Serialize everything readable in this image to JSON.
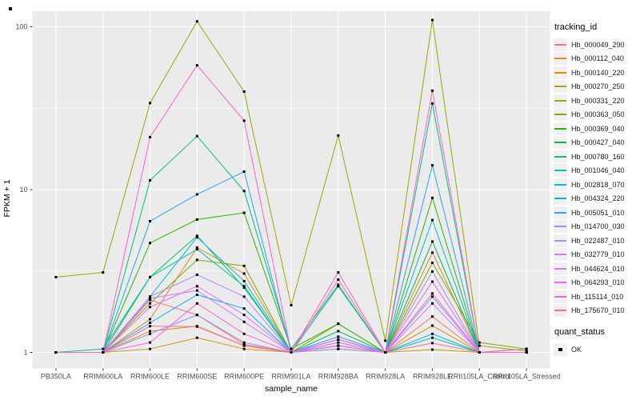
{
  "figure": {
    "panel_background": "#EBEBEB",
    "grid_color": "#FFFFFF",
    "tick_color": "#333333",
    "tick_label_color": "#4D4D4D",
    "point_color": "#000000",
    "legend_key_fill": "#F0F0F0"
  },
  "chart_data": {
    "type": "line",
    "title": "",
    "xlabel": "sample_name",
    "ylabel": "FPKM + 1",
    "y_scale": "log10",
    "y_tick_values": [
      1,
      10,
      100
    ],
    "y_minor_values": [
      3.162,
      31.62
    ],
    "ylim": [
      0.79,
      125
    ],
    "grid": true,
    "legend_position": "right",
    "point_shape": "filled-square",
    "legend_title": "tracking_id",
    "legend2_title": "quant_status",
    "legend2_items": [
      "OK"
    ],
    "categories": [
      "PB350LA",
      "RRIM600LA",
      "RRIM600LE",
      "RRIM600SE",
      "RRIM600PE",
      "RRIM901LA",
      "RRIM928BA",
      "RRIM928LA",
      "RRIM928LE",
      "RRII105LA_Control",
      "RRII105LA_Stressed"
    ],
    "series": [
      {
        "name": "Hb_000049_290",
        "color": "#F8766D",
        "values": [
          1,
          1,
          2.1,
          1.7,
          1.12,
          1,
          1.2,
          1,
          1.66,
          1,
          1
        ]
      },
      {
        "name": "Hb_000112_040",
        "color": "#E9842C",
        "values": [
          1,
          1,
          1.6,
          4.4,
          3.05,
          1,
          1.15,
          1,
          4.1,
          1,
          1
        ]
      },
      {
        "name": "Hb_000140_220",
        "color": "#D69100",
        "values": [
          1,
          1,
          1.35,
          1.45,
          1.1,
          1,
          1.1,
          1,
          1.46,
          1,
          1
        ]
      },
      {
        "name": "Hb_000270_250",
        "color": "#BC9D00",
        "values": [
          1,
          1,
          1.05,
          1.23,
          1.05,
          1,
          1.05,
          1,
          1.04,
          1,
          1
        ]
      },
      {
        "name": "Hb_000331_220",
        "color": "#9CA700",
        "values": [
          2.9,
          3.1,
          34,
          108,
          40,
          1.95,
          21.5,
          1.18,
          110,
          1.1,
          1.02
        ]
      },
      {
        "name": "Hb_000363_050",
        "color": "#6FB000",
        "values": [
          1,
          1,
          2.0,
          3.7,
          3.4,
          1,
          1.5,
          1,
          3.55,
          1.15,
          1.05
        ]
      },
      {
        "name": "Hb_000369_040",
        "color": "#2CB600",
        "values": [
          1,
          1,
          4.7,
          6.55,
          7.2,
          1.05,
          1.5,
          1,
          8.9,
          1,
          1
        ]
      },
      {
        "name": "Hb_000427_040",
        "color": "#00BB4B",
        "values": [
          1,
          1,
          2.9,
          5.2,
          2.5,
          1,
          1.35,
          1,
          4.8,
          1,
          1
        ]
      },
      {
        "name": "Hb_000780_160",
        "color": "#00C081",
        "values": [
          1,
          1,
          11.4,
          21.3,
          9.8,
          1.05,
          2.6,
          1,
          33.8,
          1,
          1
        ]
      },
      {
        "name": "Hb_001046_040",
        "color": "#00C0AF",
        "values": [
          1,
          1.05,
          2.9,
          4.3,
          2.55,
          1,
          2.55,
          1,
          1.23,
          1,
          1.05
        ]
      },
      {
        "name": "Hb_002818_070",
        "color": "#00BBDA",
        "values": [
          1,
          1,
          2.2,
          5.1,
          2.74,
          1,
          1.1,
          1,
          6.5,
          1,
          1
        ]
      },
      {
        "name": "Hb_004324_220",
        "color": "#00B2F3",
        "values": [
          1,
          1,
          1.52,
          2.26,
          1.86,
          1,
          1.1,
          1,
          1.3,
          1,
          1
        ]
      },
      {
        "name": "Hb_005051_010",
        "color": "#29A3FF",
        "values": [
          1,
          1,
          6.4,
          9.35,
          12.9,
          1,
          1.25,
          1,
          14.1,
          1,
          1
        ]
      },
      {
        "name": "Hb_014700_030",
        "color": "#8B93FF",
        "values": [
          1,
          1,
          1.3,
          1.7,
          1.15,
          1,
          1.05,
          1,
          2.2,
          1,
          1
        ]
      },
      {
        "name": "Hb_022487_010",
        "color": "#AC88FF",
        "values": [
          1,
          1,
          2.2,
          3.0,
          2.2,
          1,
          1.2,
          1,
          3.14,
          1,
          1
        ]
      },
      {
        "name": "Hb_032779_010",
        "color": "#CF78FF",
        "values": [
          1,
          1,
          2.15,
          2.4,
          1.54,
          1,
          1.15,
          1,
          2.0,
          1,
          1
        ]
      },
      {
        "name": "Hb_044624_010",
        "color": "#E56DF5",
        "values": [
          1,
          1,
          1.9,
          2.55,
          1.7,
          1,
          1.2,
          1,
          2.72,
          1,
          1
        ]
      },
      {
        "name": "Hb_064293_010",
        "color": "#F763E0",
        "values": [
          1,
          1,
          1.15,
          2.0,
          1.3,
          1,
          1.1,
          1,
          2.3,
          1,
          1
        ]
      },
      {
        "name": "Hb_115114_010",
        "color": "#FF61C7",
        "values": [
          1,
          1,
          21,
          58,
          26.5,
          1,
          3.1,
          1,
          40.5,
          1,
          1
        ]
      },
      {
        "name": "Hb_175670_010",
        "color": "#FF689C",
        "values": [
          1,
          1,
          1.45,
          1.44,
          1.1,
          1,
          2.8,
          1,
          1.14,
          1,
          1.05
        ]
      }
    ]
  }
}
